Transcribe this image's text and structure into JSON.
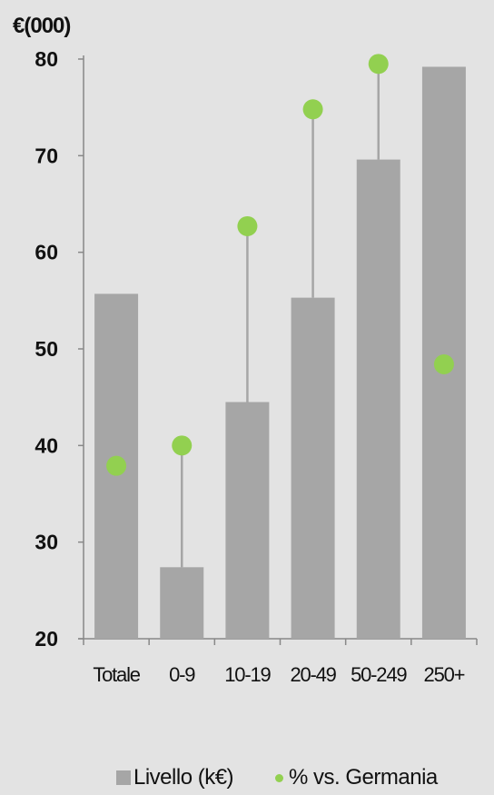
{
  "chart_data": {
    "type": "bar",
    "ylabel": "€(000)",
    "ylim": [
      20,
      80
    ],
    "yticks": [
      20,
      30,
      40,
      50,
      60,
      70,
      80
    ],
    "categories": [
      "Totale",
      "0-9",
      "10-19",
      "20-49",
      "50-249",
      "250+"
    ],
    "series": [
      {
        "name": "Livello  (k€)",
        "kind": "bar",
        "values": [
          55.7,
          27.4,
          44.5,
          55.3,
          69.6,
          79.2
        ]
      },
      {
        "name": "% vs. Germania",
        "kind": "dot",
        "values": [
          37.9,
          40.0,
          62.7,
          74.8,
          79.5,
          48.4
        ]
      }
    ],
    "grid": false,
    "legend": "bottom",
    "colors": {
      "bar": "#a6a6a6",
      "dot": "#92d050",
      "connector": "#a6a6a6",
      "axis": "#888888"
    }
  }
}
